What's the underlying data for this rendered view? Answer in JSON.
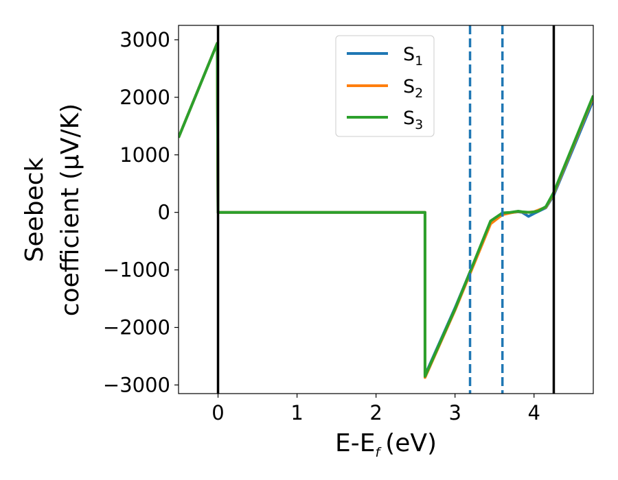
{
  "chart_data": {
    "type": "line",
    "title": "",
    "xlabel": "E-E",
    "xlabel_subscript": "f",
    "xlabel_unit": "(eV)",
    "ylabel_line1": "Seebeck",
    "ylabel_line2": "coefficient  (μV/K)",
    "xlim": [
      -0.5,
      4.75
    ],
    "ylim": [
      -3150,
      3250
    ],
    "xticks": [
      0,
      1,
      2,
      3,
      4
    ],
    "yticks": [
      -3000,
      -2000,
      -1000,
      0,
      1000,
      2000,
      3000
    ],
    "xtick_labels": [
      "0",
      "1",
      "2",
      "3",
      "4"
    ],
    "ytick_labels": [
      "−3000",
      "−2000",
      "−1000",
      "0",
      "1000",
      "2000",
      "3000"
    ],
    "grid": false,
    "legend_position": "top-center",
    "vertical_lines": [
      {
        "x": 0.0,
        "style": "solid",
        "color": "#000000"
      },
      {
        "x": 4.25,
        "style": "solid",
        "color": "#000000"
      },
      {
        "x": 3.19,
        "style": "dashed",
        "color": "#1f77b4"
      },
      {
        "x": 3.6,
        "style": "dashed",
        "color": "#1f77b4"
      }
    ],
    "series": [
      {
        "name": "S",
        "subscript": "1",
        "color": "#1f77b4",
        "points": [
          [
            -0.5,
            1300
          ],
          [
            -0.01,
            2940
          ],
          [
            0.0,
            0
          ],
          [
            2.62,
            0
          ],
          [
            2.62,
            -2830
          ],
          [
            3.0,
            -1660
          ],
          [
            3.45,
            -180
          ],
          [
            3.6,
            -30
          ],
          [
            3.7,
            -5
          ],
          [
            3.8,
            10
          ],
          [
            3.85,
            0
          ],
          [
            3.93,
            -70
          ],
          [
            4.0,
            -20
          ],
          [
            4.15,
            80
          ],
          [
            4.25,
            300
          ],
          [
            4.75,
            1950
          ]
        ]
      },
      {
        "name": "S",
        "subscript": "2",
        "color": "#ff7f0e",
        "points": [
          [
            -0.5,
            1300
          ],
          [
            -0.01,
            2940
          ],
          [
            0.0,
            0
          ],
          [
            2.62,
            0
          ],
          [
            2.62,
            -2870
          ],
          [
            3.0,
            -1700
          ],
          [
            3.45,
            -200
          ],
          [
            3.6,
            -40
          ],
          [
            3.7,
            -10
          ],
          [
            3.8,
            15
          ],
          [
            3.9,
            0
          ],
          [
            4.0,
            10
          ],
          [
            4.15,
            90
          ],
          [
            4.25,
            330
          ],
          [
            4.75,
            2010
          ]
        ]
      },
      {
        "name": "S",
        "subscript": "3",
        "color": "#2ca02c",
        "points": [
          [
            -0.5,
            1300
          ],
          [
            -0.01,
            2940
          ],
          [
            0.0,
            0
          ],
          [
            2.62,
            0
          ],
          [
            2.62,
            -2850
          ],
          [
            3.0,
            -1680
          ],
          [
            3.45,
            -150
          ],
          [
            3.6,
            -10
          ],
          [
            3.7,
            0
          ],
          [
            3.8,
            20
          ],
          [
            3.85,
            10
          ],
          [
            3.95,
            0
          ],
          [
            4.05,
            20
          ],
          [
            4.15,
            100
          ],
          [
            4.25,
            350
          ],
          [
            4.75,
            2030
          ]
        ]
      }
    ]
  }
}
